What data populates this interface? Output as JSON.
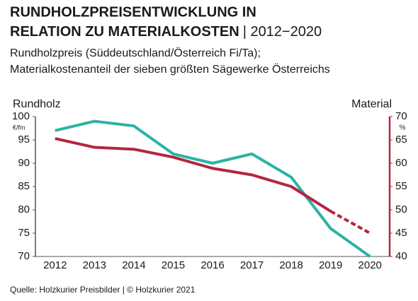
{
  "chart_data": {
    "type": "line",
    "title": [
      "RUNDHOLZPREISENTWICKLUNG IN",
      "RELATION ZU MATERIALKOSTEN"
    ],
    "title_suffix": "| 2012−2020",
    "subtitle": [
      "Rundholzpreis (Süddeutschland/Österreich Fi/Ta);",
      "Materialkostenanteil der sieben größten Sägewerke Österreichs"
    ],
    "y_label": "Rundholz",
    "y_unit": "€/fm",
    "y2_label": "Material",
    "y2_unit": "%",
    "source": "Quelle: Holzkurier Preisbilder | © Holzkurier 2021",
    "categories": [
      "2012",
      "2013",
      "2014",
      "2015",
      "2016",
      "2017",
      "2018",
      "2019",
      "2020"
    ],
    "series": [
      {
        "name": "Rundholz",
        "color": "#2bb3a5",
        "values": [
          97,
          99,
          98,
          92,
          90,
          92,
          87,
          76,
          70
        ]
      },
      {
        "name": "Material",
        "color": "#b3263f",
        "axis": "y2",
        "dashed_from": "2019",
        "values": [
          65.3,
          63.4,
          63,
          61.3,
          58.9,
          57.5,
          55,
          49.7,
          45
        ]
      }
    ],
    "ylim": [
      70,
      100
    ],
    "yticks": [
      70,
      75,
      80,
      85,
      90,
      95,
      100
    ],
    "y2lim": [
      40,
      70
    ],
    "y2ticks": [
      40,
      45,
      50,
      55,
      60,
      65,
      70
    ],
    "y_axis_color": "#555555",
    "y2_axis_color": "#b3263f"
  }
}
